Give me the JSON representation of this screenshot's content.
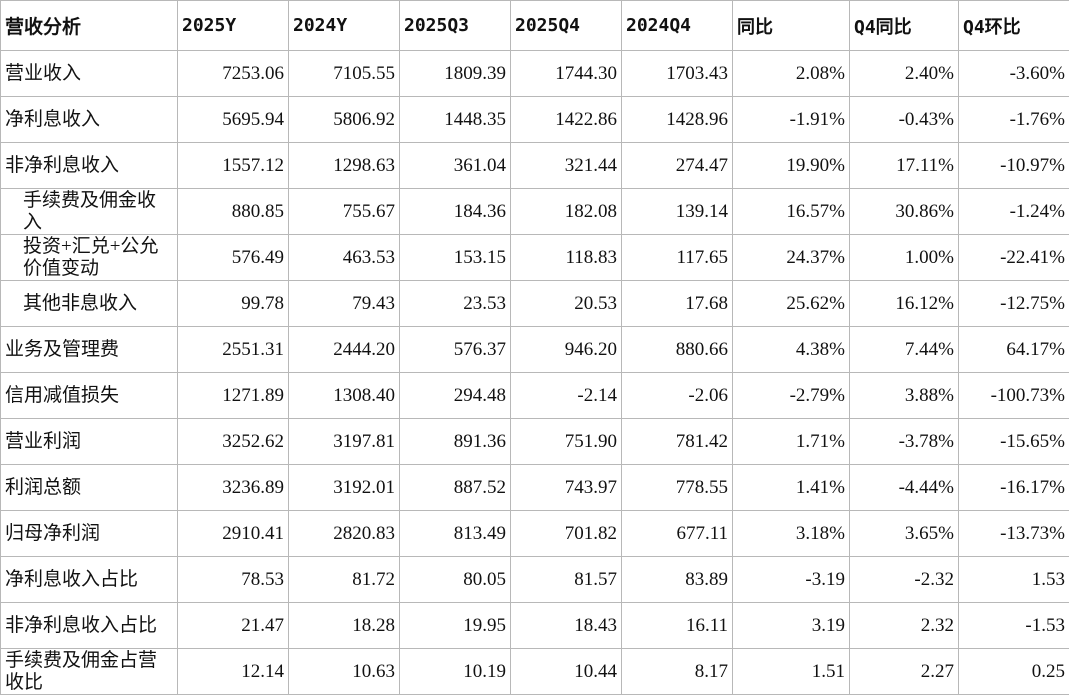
{
  "table": {
    "header": [
      "营收分析",
      "2025Y",
      "2024Y",
      "2025Q3",
      "2025Q4",
      "2024Q4",
      "同比",
      "Q4同比",
      "Q4环比"
    ],
    "rows": [
      [
        "营业收入",
        "7253.06",
        "7105.55",
        "1809.39",
        "1744.30",
        "1703.43",
        "2.08%",
        "2.40%",
        "-3.60%"
      ],
      [
        "净利息收入",
        "5695.94",
        "5806.92",
        "1448.35",
        "1422.86",
        "1428.96",
        "-1.91%",
        "-0.43%",
        "-1.76%"
      ],
      [
        "非净利息收入",
        "1557.12",
        "1298.63",
        "361.04",
        "321.44",
        "274.47",
        "19.90%",
        "17.11%",
        "-10.97%"
      ],
      [
        "手续费及佣金收入",
        "880.85",
        "755.67",
        "184.36",
        "182.08",
        "139.14",
        "16.57%",
        "30.86%",
        "-1.24%"
      ],
      [
        "投资+汇兑+公允价值变动",
        "576.49",
        "463.53",
        "153.15",
        "118.83",
        "117.65",
        "24.37%",
        "1.00%",
        "-22.41%"
      ],
      [
        "其他非息收入",
        "99.78",
        "79.43",
        "23.53",
        "20.53",
        "17.68",
        "25.62%",
        "16.12%",
        "-12.75%"
      ],
      [
        "业务及管理费",
        "2551.31",
        "2444.20",
        "576.37",
        "946.20",
        "880.66",
        "4.38%",
        "7.44%",
        "64.17%"
      ],
      [
        "信用减值损失",
        "1271.89",
        "1308.40",
        "294.48",
        "-2.14",
        "-2.06",
        "-2.79%",
        "3.88%",
        "-100.73%"
      ],
      [
        "营业利润",
        "3252.62",
        "3197.81",
        "891.36",
        "751.90",
        "781.42",
        "1.71%",
        "-3.78%",
        "-15.65%"
      ],
      [
        "利润总额",
        "3236.89",
        "3192.01",
        "887.52",
        "743.97",
        "778.55",
        "1.41%",
        "-4.44%",
        "-16.17%"
      ],
      [
        "归母净利润",
        "2910.41",
        "2820.83",
        "813.49",
        "701.82",
        "677.11",
        "3.18%",
        "3.65%",
        "-13.73%"
      ],
      [
        "净利息收入占比",
        "78.53",
        "81.72",
        "80.05",
        "81.57",
        "83.89",
        "-3.19",
        "-2.32",
        "1.53"
      ],
      [
        "非净利息收入占比",
        "21.47",
        "18.28",
        "19.95",
        "18.43",
        "16.11",
        "3.19",
        "2.32",
        "-1.53"
      ],
      [
        "手续费及佣金占营收比",
        "12.14",
        "10.63",
        "10.19",
        "10.44",
        "8.17",
        "1.51",
        "2.27",
        "0.25"
      ]
    ]
  }
}
